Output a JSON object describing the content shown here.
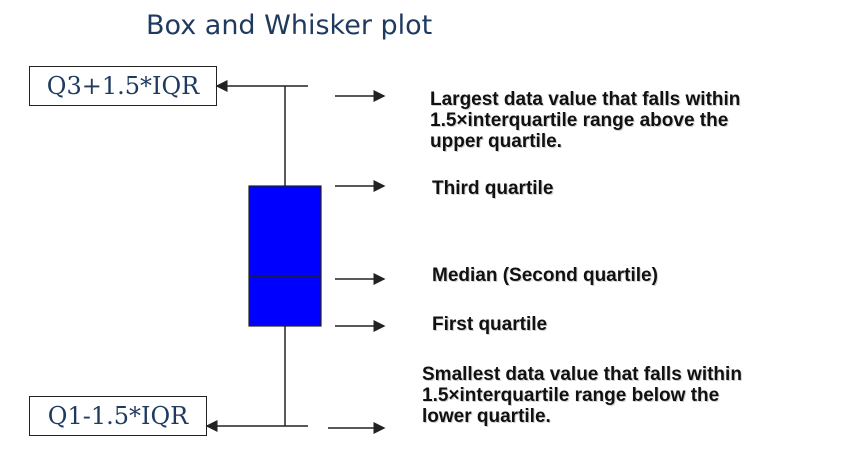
{
  "title": "Box and Whisker plot",
  "upper_limit_label": "Q3+1.5*IQR",
  "lower_limit_label": "Q1-1.5*IQR",
  "annotations": {
    "upper_whisker": [
      "Largest data value that falls within",
      "1.5×interquartile range above the",
      "upper quartile."
    ],
    "third_quartile": "Third quartile",
    "median": "Median (Second quartile)",
    "first_quartile": "First quartile",
    "lower_whisker": [
      "Smallest data value that falls within",
      "1.5×interquartile range below the",
      "lower quartile."
    ]
  },
  "colors": {
    "box": "#0000ff",
    "title": "#1f3a5f",
    "lines": "#222222"
  }
}
